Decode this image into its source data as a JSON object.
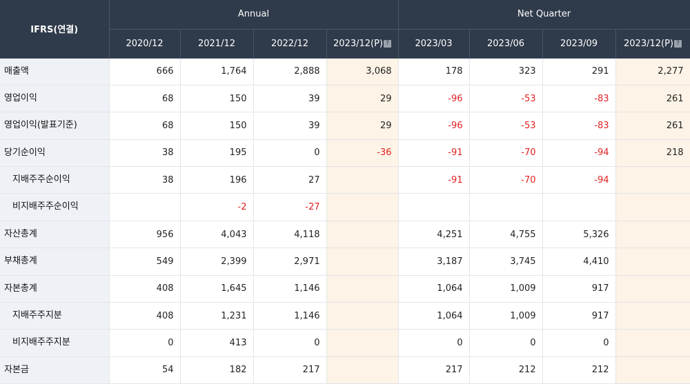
{
  "header": {
    "corner": "IFRS(연결)",
    "annual_label": "Annual",
    "quarter_label": "Net Quarter",
    "annual_cols": [
      "2020/12",
      "2021/12",
      "2022/12",
      "2023/12(P)"
    ],
    "quarter_cols": [
      "2023/03",
      "2023/06",
      "2023/09",
      "2023/12(P)"
    ],
    "preliminary_marker": "?"
  },
  "colors": {
    "header_bg": "#2f3a4a",
    "label_bg": "#eef1f6",
    "estimate_bg": "#fdf3e6",
    "negative": "#e02020"
  },
  "rows": [
    {
      "label": "매출액",
      "sub": false,
      "values": [
        "666",
        "1,764",
        "2,888",
        "3,068",
        "178",
        "323",
        "291",
        "2,277"
      ]
    },
    {
      "label": "영업이익",
      "sub": false,
      "values": [
        "68",
        "150",
        "39",
        "29",
        "-96",
        "-53",
        "-83",
        "261"
      ]
    },
    {
      "label": "영업이익(발표기준)",
      "sub": false,
      "values": [
        "68",
        "150",
        "39",
        "29",
        "-96",
        "-53",
        "-83",
        "261"
      ]
    },
    {
      "label": "당기순이익",
      "sub": false,
      "values": [
        "38",
        "195",
        "0",
        "-36",
        "-91",
        "-70",
        "-94",
        "218"
      ]
    },
    {
      "label": "지배주주순이익",
      "sub": true,
      "values": [
        "38",
        "196",
        "27",
        "",
        "-91",
        "-70",
        "-94",
        ""
      ]
    },
    {
      "label": "비지배주주순이익",
      "sub": true,
      "values": [
        "",
        "-2",
        "-27",
        "",
        "",
        "",
        "",
        ""
      ]
    },
    {
      "label": "자산총계",
      "sub": false,
      "values": [
        "956",
        "4,043",
        "4,118",
        "",
        "4,251",
        "4,755",
        "5,326",
        ""
      ]
    },
    {
      "label": "부채총계",
      "sub": false,
      "values": [
        "549",
        "2,399",
        "2,971",
        "",
        "3,187",
        "3,745",
        "4,410",
        ""
      ]
    },
    {
      "label": "자본총계",
      "sub": false,
      "values": [
        "408",
        "1,645",
        "1,146",
        "",
        "1,064",
        "1,009",
        "917",
        ""
      ]
    },
    {
      "label": "지배주주지분",
      "sub": true,
      "values": [
        "408",
        "1,231",
        "1,146",
        "",
        "1,064",
        "1,009",
        "917",
        ""
      ]
    },
    {
      "label": "비지배주주지분",
      "sub": true,
      "values": [
        "0",
        "413",
        "0",
        "",
        "0",
        "0",
        "0",
        ""
      ]
    },
    {
      "label": "자본금",
      "sub": false,
      "values": [
        "54",
        "182",
        "217",
        "",
        "217",
        "212",
        "212",
        ""
      ]
    }
  ]
}
